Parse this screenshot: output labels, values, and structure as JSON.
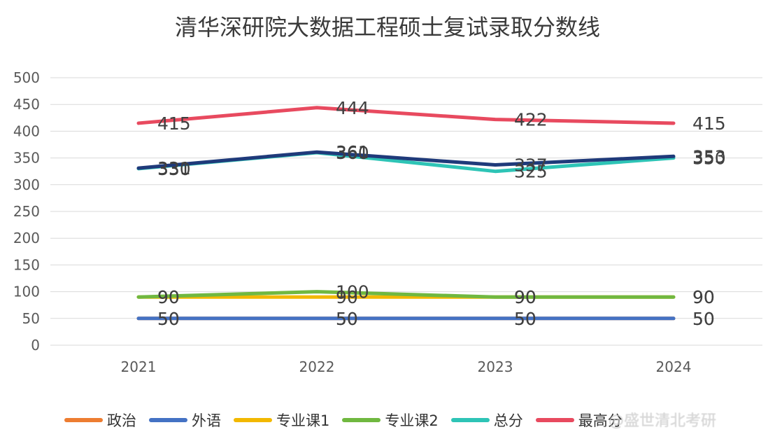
{
  "chart_data": {
    "type": "line",
    "title": "清华深研院大数据工程硕士复试录取分数线",
    "categories": [
      "2021",
      "2022",
      "2023",
      "2024"
    ],
    "ylim": [
      0,
      500
    ],
    "yticks": [
      0,
      50,
      100,
      150,
      200,
      250,
      300,
      350,
      400,
      450,
      500
    ],
    "grid": true,
    "legend_position": "bottom",
    "series": [
      {
        "name": "政治",
        "color": "#ed7d31",
        "values": [
          50,
          50,
          50,
          50
        ]
      },
      {
        "name": "外语",
        "color": "#4472c4",
        "values": [
          50,
          50,
          50,
          50
        ]
      },
      {
        "name": "专业课1",
        "color": "#f2b800",
        "values": [
          90,
          90,
          90,
          90
        ]
      },
      {
        "name": "专业课2",
        "color": "#70b840",
        "values": [
          90,
          100,
          90,
          90
        ]
      },
      {
        "name": "总分",
        "color": "#2ec4b6",
        "values": [
          330,
          360,
          325,
          350
        ]
      },
      {
        "name": "最高分",
        "color": "#e84a5f",
        "values": [
          415,
          444,
          422,
          415
        ]
      },
      {
        "name": "...",
        "color": "#1f3a7a",
        "values": [
          331,
          361,
          337,
          353
        ]
      }
    ],
    "legend_labels": [
      "政治",
      "外语",
      "专业课1",
      "专业课2",
      "总分",
      "最高分"
    ]
  },
  "watermark": "@盛世清北考研"
}
